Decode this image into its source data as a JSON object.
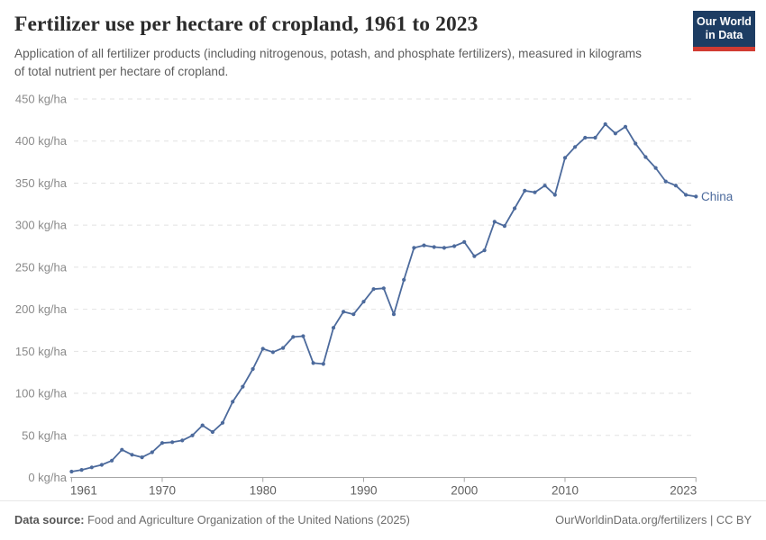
{
  "header": {
    "title": "Fertilizer use per hectare of cropland, 1961 to 2023",
    "subtitle": "Application of all fertilizer products (including nitrogenous, potash, and phosphate fertilizers), measured in kilograms of total nutrient per hectare of cropland.",
    "logo": {
      "line1": "Our World",
      "line2": "in Data"
    }
  },
  "chart_data": {
    "type": "line",
    "title": "Fertilizer use per hectare of cropland, 1961 to 2023",
    "xlabel": "",
    "ylabel": "kg/ha",
    "xlim": [
      1961,
      2023
    ],
    "ylim": [
      0,
      450
    ],
    "grid": "horizontal-dashed",
    "legend_position": "end-of-line-label",
    "x_ticks": [
      1961,
      1970,
      1980,
      1990,
      2000,
      2010,
      2023
    ],
    "y_ticks": [
      0,
      50,
      100,
      150,
      200,
      250,
      300,
      350,
      400,
      450
    ],
    "y_tick_suffix": " kg/ha",
    "series": [
      {
        "name": "China",
        "color": "#4C6A9C",
        "years": [
          1961,
          1962,
          1963,
          1964,
          1965,
          1966,
          1967,
          1968,
          1969,
          1970,
          1971,
          1972,
          1973,
          1974,
          1975,
          1976,
          1977,
          1978,
          1979,
          1980,
          1981,
          1982,
          1983,
          1984,
          1985,
          1986,
          1987,
          1988,
          1989,
          1990,
          1991,
          1992,
          1993,
          1994,
          1995,
          1996,
          1997,
          1998,
          1999,
          2000,
          2001,
          2002,
          2003,
          2004,
          2005,
          2006,
          2007,
          2008,
          2009,
          2010,
          2011,
          2012,
          2013,
          2014,
          2015,
          2016,
          2017,
          2018,
          2019,
          2020,
          2021,
          2022,
          2023
        ],
        "values": [
          7,
          9,
          12,
          15,
          20,
          33,
          27,
          24,
          30,
          41,
          42,
          44,
          50,
          62,
          54,
          65,
          90,
          108,
          129,
          153,
          149,
          154,
          167,
          168,
          136,
          135,
          178,
          197,
          194,
          209,
          224,
          225,
          194,
          235,
          273,
          276,
          274,
          273,
          275,
          280,
          263,
          270,
          304,
          299,
          320,
          341,
          339,
          347,
          336,
          380,
          393,
          404,
          404,
          420,
          409,
          417,
          397,
          381,
          368,
          352,
          347,
          336,
          334
        ]
      }
    ]
  },
  "colors": {
    "line": "#4C6A9C",
    "gridline": "#e2e2e2",
    "axis": "#a6a6a6",
    "y_label": "#8a8a8a",
    "x_label": "#606060",
    "entity_label": "#4C6A9C"
  },
  "footer": {
    "source_label": "Data source:",
    "source_text": "Food and Agriculture Organization of the United Nations (2025)",
    "link_text": "OurWorldinData.org/fertilizers",
    "divider": "|",
    "license_text": "CC BY"
  }
}
